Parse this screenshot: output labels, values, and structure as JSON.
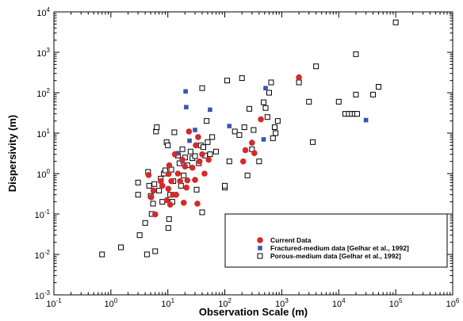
{
  "chart_data": {
    "type": "scatter",
    "title": "",
    "xlabel": "Observation Scale (m)",
    "ylabel": "Dispersivity (m)",
    "x_scale": "log",
    "y_scale": "log",
    "xlim": [
      0.1,
      1000000
    ],
    "ylim": [
      0.001,
      10000
    ],
    "x_tick_labels": [
      {
        "base": "10",
        "exp": "-1"
      },
      {
        "base": "10",
        "exp": "0"
      },
      {
        "base": "10",
        "exp": "1"
      },
      {
        "base": "10",
        "exp": "2"
      },
      {
        "base": "10",
        "exp": "3"
      },
      {
        "base": "10",
        "exp": "4"
      },
      {
        "base": "10",
        "exp": "5"
      },
      {
        "base": "10",
        "exp": "6"
      }
    ],
    "y_tick_labels": [
      {
        "base": "10",
        "exp": "-3"
      },
      {
        "base": "10",
        "exp": "-2"
      },
      {
        "base": "10",
        "exp": "-1"
      },
      {
        "base": "10",
        "exp": "0"
      },
      {
        "base": "10",
        "exp": "1"
      },
      {
        "base": "10",
        "exp": "2"
      },
      {
        "base": "10",
        "exp": "3"
      },
      {
        "base": "10",
        "exp": "4"
      }
    ],
    "grid": false,
    "legend_position": "bottom-right",
    "series": [
      {
        "name": "Current Data",
        "marker": "circle",
        "color": "#d42a2a",
        "points": [
          [
            4.6,
            0.92
          ],
          [
            5.1,
            0.26
          ],
          [
            5.6,
            0.38
          ],
          [
            6.0,
            0.098
          ],
          [
            7.5,
            0.65
          ],
          [
            8.0,
            0.5
          ],
          [
            9.6,
            0.22
          ],
          [
            10.2,
            0.42
          ],
          [
            10.3,
            0.98
          ],
          [
            10.6,
            1.6
          ],
          [
            11.0,
            0.17
          ],
          [
            11.5,
            0.65
          ],
          [
            12.3,
            0.3
          ],
          [
            13.3,
            3.0
          ],
          [
            14.0,
            0.3
          ],
          [
            15.0,
            1.0
          ],
          [
            16.4,
            0.65
          ],
          [
            18.0,
            2.2
          ],
          [
            19.0,
            0.19
          ],
          [
            20.0,
            1.5
          ],
          [
            21.2,
            0.45
          ],
          [
            22.0,
            0.68
          ],
          [
            23.5,
            11.0
          ],
          [
            27.0,
            1.4
          ],
          [
            30.0,
            0.7
          ],
          [
            31.0,
            5.0
          ],
          [
            33.0,
            0.18
          ],
          [
            34.0,
            8.0
          ],
          [
            36.0,
            2.0
          ],
          [
            40.0,
            3.0
          ],
          [
            44.0,
            1.0
          ],
          [
            52.0,
            2.2
          ],
          [
            210.0,
            2.0
          ],
          [
            230.0,
            3.8
          ],
          [
            300.0,
            5.8
          ],
          [
            330.0,
            3.2
          ],
          [
            430.0,
            22.0
          ],
          [
            2000.0,
            240.0
          ]
        ]
      },
      {
        "name": "Fractured-medium data [Gelhar et al., 1992]",
        "marker": "square-filled",
        "color": "#3b55a8",
        "points": [
          [
            15.0,
            3.2
          ],
          [
            18.0,
            2.0
          ],
          [
            20.5,
            108.0
          ],
          [
            21.0,
            44.0
          ],
          [
            24.0,
            6.5
          ],
          [
            30.0,
            12.0
          ],
          [
            55.0,
            38.0
          ],
          [
            120.0,
            15.0
          ],
          [
            480.0,
            7.0
          ],
          [
            520.0,
            130.0
          ],
          [
            30000.0,
            21.0
          ]
        ]
      },
      {
        "name": "Porous-medium data [Gelhar et al., 1992]",
        "marker": "square-open",
        "color": "#000000",
        "points": [
          [
            0.7,
            0.01
          ],
          [
            1.5,
            0.015
          ],
          [
            3.0,
            0.6
          ],
          [
            3.0,
            0.3
          ],
          [
            3.2,
            0.03
          ],
          [
            4.0,
            0.06
          ],
          [
            4.3,
            0.01
          ],
          [
            4.5,
            1.1
          ],
          [
            4.7,
            0.5
          ],
          [
            5.0,
            0.28
          ],
          [
            5.2,
            0.1
          ],
          [
            5.5,
            0.18
          ],
          [
            5.8,
            0.55
          ],
          [
            6.0,
            0.012
          ],
          [
            6.2,
            11.0
          ],
          [
            6.4,
            14.0
          ],
          [
            7.0,
            0.38
          ],
          [
            7.5,
            0.75
          ],
          [
            8.0,
            0.2
          ],
          [
            8.5,
            1.0
          ],
          [
            9.0,
            1.2
          ],
          [
            9.5,
            6.0
          ],
          [
            10.0,
            5.0
          ],
          [
            10.2,
            0.045
          ],
          [
            10.5,
            0.075
          ],
          [
            11.0,
            0.3
          ],
          [
            11.5,
            1.25
          ],
          [
            12.0,
            0.2
          ],
          [
            12.5,
            0.65
          ],
          [
            13.0,
            10.5
          ],
          [
            14.0,
            3.0
          ],
          [
            15.0,
            2.8
          ],
          [
            16.0,
            1.8
          ],
          [
            17.0,
            0.5
          ],
          [
            18.0,
            4.0
          ],
          [
            19.0,
            0.9
          ],
          [
            20.0,
            2.5
          ],
          [
            22.0,
            1.6
          ],
          [
            25.0,
            3.5
          ],
          [
            27.0,
            2.4
          ],
          [
            30.0,
            2.7
          ],
          [
            32.0,
            0.4
          ],
          [
            35.0,
            1.8
          ],
          [
            38.0,
            5.0
          ],
          [
            40.0,
            0.11
          ],
          [
            40.0,
            130.0
          ],
          [
            42.0,
            4.5
          ],
          [
            45.0,
            2.8
          ],
          [
            48.0,
            20.0
          ],
          [
            50.0,
            6.0
          ],
          [
            55.0,
            3.0
          ],
          [
            60.0,
            8.0
          ],
          [
            70.0,
            3.5
          ],
          [
            100.0,
            0.45
          ],
          [
            100.0,
            0.5
          ],
          [
            110.0,
            200.0
          ],
          [
            120.0,
            2.0
          ],
          [
            150.0,
            11.0
          ],
          [
            180.0,
            9.0
          ],
          [
            200.0,
            230.0
          ],
          [
            220.0,
            14.0
          ],
          [
            250.0,
            0.9
          ],
          [
            270.0,
            40.0
          ],
          [
            300.0,
            4.0
          ],
          [
            320.0,
            12.0
          ],
          [
            400.0,
            2.0
          ],
          [
            480.0,
            58.0
          ],
          [
            520.0,
            42.0
          ],
          [
            560.0,
            25.0
          ],
          [
            600.0,
            100.0
          ],
          [
            650.0,
            180.0
          ],
          [
            700.0,
            7.5
          ],
          [
            750.0,
            14.0
          ],
          [
            780.0,
            10.0
          ],
          [
            850.0,
            20.0
          ],
          [
            2000.0,
            180.0
          ],
          [
            3000.0,
            60.0
          ],
          [
            3500.0,
            6.0
          ],
          [
            4000.0,
            450.0
          ],
          [
            10000.0,
            60.0
          ],
          [
            13000.0,
            30.0
          ],
          [
            15000.0,
            30.0
          ],
          [
            17000.0,
            30.0
          ],
          [
            19000.0,
            30.0
          ],
          [
            20000.0,
            900.0
          ],
          [
            20000.0,
            90.0
          ],
          [
            21000.0,
            30.0
          ],
          [
            40000.0,
            90.0
          ],
          [
            50000.0,
            140.0
          ],
          [
            100000.0,
            5500.0
          ]
        ]
      }
    ]
  }
}
